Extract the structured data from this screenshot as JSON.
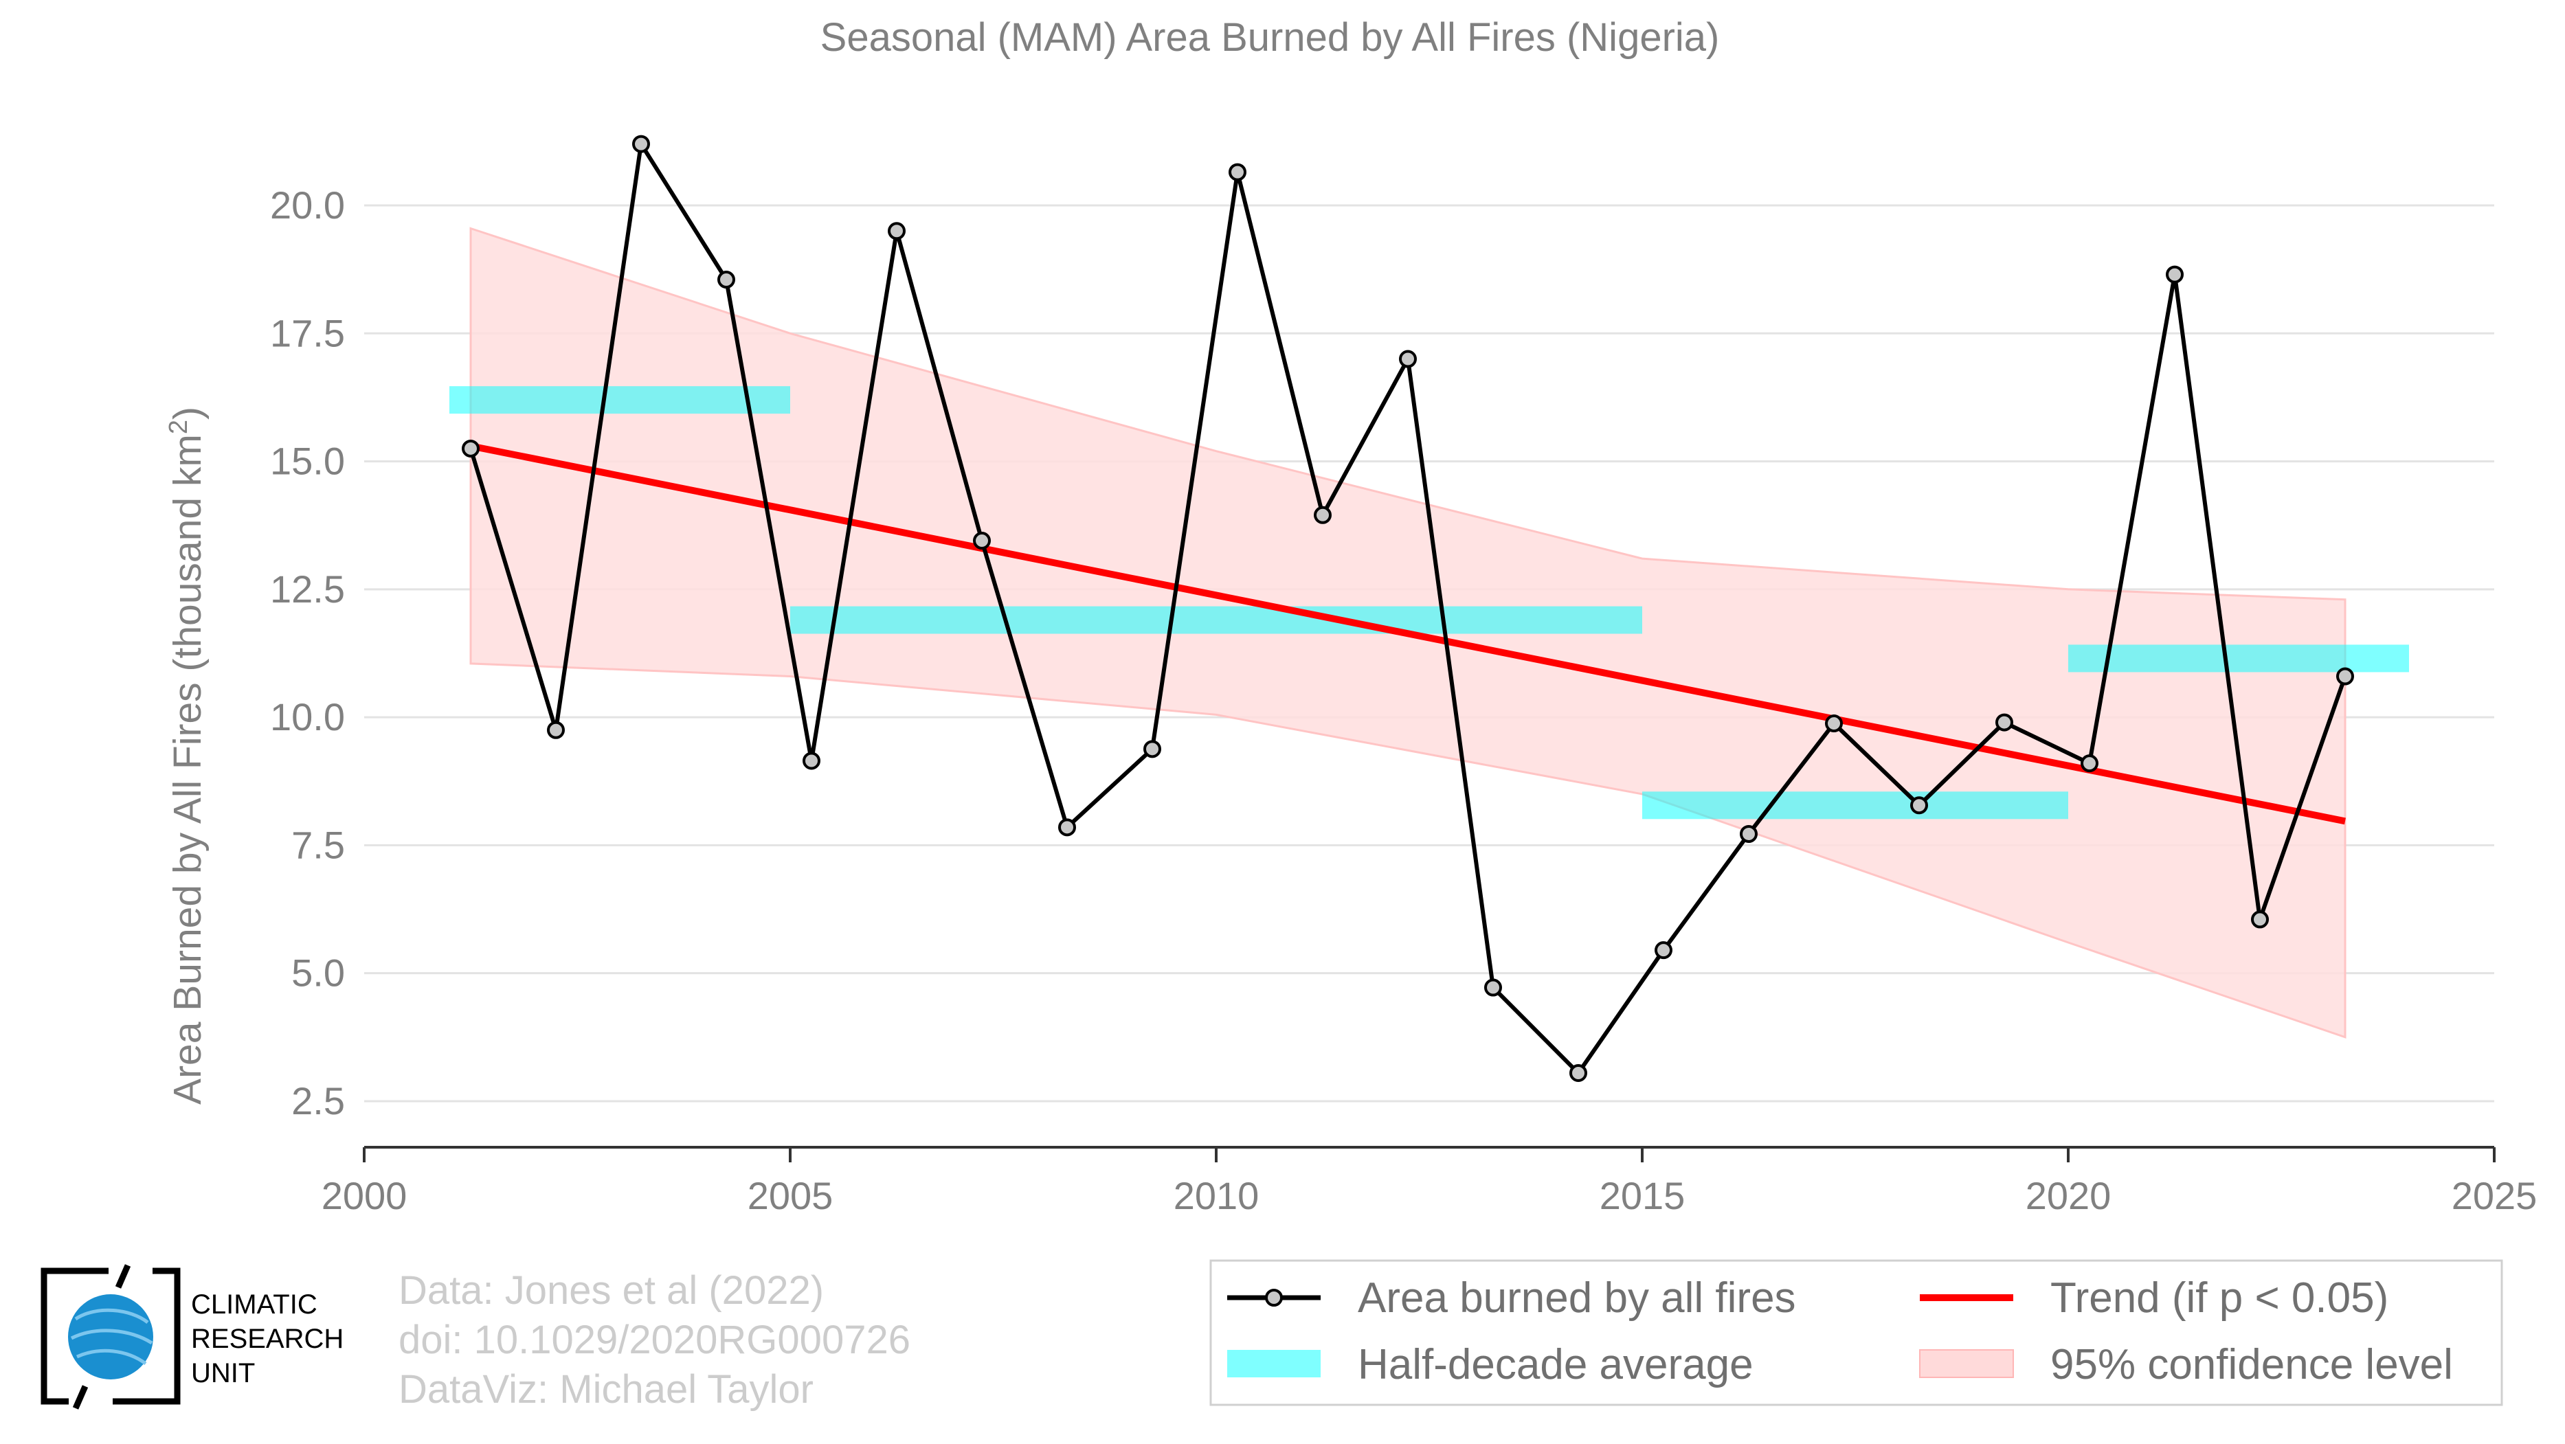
{
  "chart_data": {
    "type": "line",
    "title": "Seasonal (MAM) Area Burned by All Fires (Nigeria)",
    "ylabel_main": "Area Burned by All Fires (thousand km",
    "ylabel_sup": "2",
    "ylabel_end": ")",
    "xlim": [
      2000,
      2025
    ],
    "ylim": [
      1.6,
      22.0
    ],
    "x_ticks": [
      2000,
      2005,
      2010,
      2015,
      2020,
      2025
    ],
    "x_tick_labels": [
      "2000",
      "2005",
      "2010",
      "2015",
      "2020",
      "2025"
    ],
    "y_ticks": [
      2.5,
      5.0,
      7.5,
      10.0,
      12.5,
      15.0,
      17.5,
      20.0
    ],
    "y_tick_labels": [
      "2.5",
      "5.0",
      "7.5",
      "10.0",
      "12.5",
      "15.0",
      "17.5",
      "20.0"
    ],
    "grid": "horizontal",
    "series": [
      {
        "name": "Area burned by all fires",
        "color": "#000000",
        "marker_color": "#c8c8c8",
        "x": [
          2001.25,
          2002.25,
          2003.25,
          2004.25,
          2005.25,
          2006.25,
          2007.25,
          2008.25,
          2009.25,
          2010.25,
          2011.25,
          2012.25,
          2013.25,
          2014.25,
          2015.25,
          2016.25,
          2017.25,
          2018.25,
          2019.25,
          2020.25,
          2021.25,
          2022.25,
          2023.25
        ],
        "y": [
          15.25,
          9.75,
          21.2,
          18.55,
          9.15,
          19.5,
          13.45,
          7.85,
          9.38,
          20.65,
          13.95,
          17.0,
          4.72,
          3.05,
          5.45,
          7.72,
          9.88,
          8.28,
          9.9,
          9.1,
          18.65,
          6.05,
          10.8
        ]
      },
      {
        "name": "Half-decade average",
        "color": "#00ffff",
        "segments": [
          {
            "x0": 2001.0,
            "x1": 2005.0,
            "y": 16.2
          },
          {
            "x0": 2005.0,
            "x1": 2015.0,
            "y": 11.9
          },
          {
            "x0": 2015.0,
            "x1": 2020.0,
            "y": 8.28
          },
          {
            "x0": 2020.0,
            "x1": 2024.0,
            "y": 11.15
          }
        ]
      },
      {
        "name": "Trend (if p < 0.05)",
        "color": "#ff0000",
        "x": [
          2001.25,
          2023.25
        ],
        "y": [
          15.3,
          7.97
        ]
      },
      {
        "name": "95% confidence level",
        "color": "#ffb6b6",
        "x": [
          2001.25,
          2005,
          2010,
          2015,
          2020,
          2023.25
        ],
        "upper": [
          19.55,
          17.5,
          15.2,
          13.1,
          12.5,
          12.3
        ],
        "lower": [
          11.05,
          10.8,
          10.05,
          8.5,
          5.6,
          3.75
        ]
      }
    ],
    "legend_position": "bottom-right"
  },
  "credits": {
    "line1": "Data: Jones et al (2022)",
    "line2": "doi: 10.1029/2020RG000726",
    "line3": "DataViz: Michael Taylor"
  },
  "logo": {
    "line1": "CLIMATIC",
    "line2": "RESEARCH",
    "line3": "UNIT"
  }
}
